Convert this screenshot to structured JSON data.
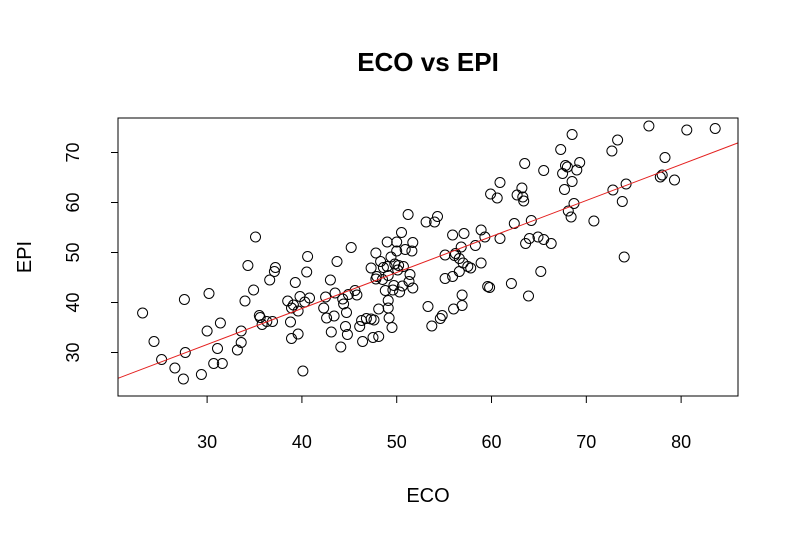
{
  "chart_data": {
    "type": "scatter",
    "title": "ECO vs EPI",
    "xlabel": "ECO",
    "ylabel": "EPI",
    "xlim": [
      20.6,
      86.0
    ],
    "ylim": [
      21.3,
      76.9
    ],
    "xticks": [
      "30",
      "40",
      "50",
      "60",
      "70",
      "80"
    ],
    "yticks": [
      "30",
      "40",
      "50",
      "60",
      "70"
    ],
    "grid": false,
    "legend": "none",
    "point_color": "#000000",
    "line_color": "#e4201f",
    "regression_line": {
      "intercept": 10.0,
      "slope": 0.72
    },
    "points": [
      [
        23.2,
        37.9
      ],
      [
        24.4,
        32.2
      ],
      [
        25.2,
        28.6
      ],
      [
        26.6,
        26.9
      ],
      [
        27.5,
        24.7
      ],
      [
        27.6,
        40.6
      ],
      [
        27.7,
        30.0
      ],
      [
        29.4,
        25.6
      ],
      [
        30.0,
        34.3
      ],
      [
        30.2,
        41.8
      ],
      [
        30.7,
        27.8
      ],
      [
        31.1,
        30.8
      ],
      [
        31.4,
        35.9
      ],
      [
        31.6,
        27.8
      ],
      [
        33.2,
        30.5
      ],
      [
        33.6,
        34.3
      ],
      [
        33.6,
        32.0
      ],
      [
        34.0,
        40.3
      ],
      [
        34.3,
        47.4
      ],
      [
        34.9,
        42.5
      ],
      [
        35.1,
        53.1
      ],
      [
        35.5,
        37.4
      ],
      [
        35.6,
        37.0
      ],
      [
        35.8,
        35.6
      ],
      [
        36.3,
        36.2
      ],
      [
        36.6,
        44.5
      ],
      [
        36.9,
        36.2
      ],
      [
        37.1,
        46.2
      ],
      [
        37.2,
        47.0
      ],
      [
        38.5,
        40.3
      ],
      [
        38.8,
        36.1
      ],
      [
        38.9,
        32.8
      ],
      [
        38.9,
        38.9
      ],
      [
        39.1,
        39.5
      ],
      [
        39.3,
        44.0
      ],
      [
        39.6,
        33.7
      ],
      [
        39.6,
        38.3
      ],
      [
        39.8,
        41.2
      ],
      [
        40.1,
        26.3
      ],
      [
        40.3,
        40.1
      ],
      [
        40.5,
        46.1
      ],
      [
        40.6,
        49.2
      ],
      [
        40.8,
        40.9
      ],
      [
        42.3,
        38.9
      ],
      [
        42.5,
        41.1
      ],
      [
        42.6,
        36.9
      ],
      [
        43.0,
        44.5
      ],
      [
        43.1,
        34.1
      ],
      [
        43.4,
        37.3
      ],
      [
        43.5,
        41.9
      ],
      [
        43.7,
        48.2
      ],
      [
        44.1,
        31.1
      ],
      [
        44.3,
        40.7
      ],
      [
        44.4,
        39.7
      ],
      [
        44.6,
        35.2
      ],
      [
        44.7,
        38.0
      ],
      [
        44.8,
        33.6
      ],
      [
        44.9,
        41.6
      ],
      [
        45.2,
        51.0
      ],
      [
        45.6,
        42.4
      ],
      [
        45.8,
        41.5
      ],
      [
        46.1,
        35.2
      ],
      [
        46.3,
        36.4
      ],
      [
        46.4,
        32.2
      ],
      [
        46.8,
        36.8
      ],
      [
        47.3,
        46.9
      ],
      [
        47.3,
        36.7
      ],
      [
        47.5,
        33.0
      ],
      [
        47.6,
        36.5
      ],
      [
        47.8,
        44.7
      ],
      [
        47.8,
        49.9
      ],
      [
        47.9,
        45.2
      ],
      [
        48.1,
        33.2
      ],
      [
        48.1,
        38.7
      ],
      [
        48.3,
        48.2
      ],
      [
        48.5,
        44.6
      ],
      [
        48.6,
        47.0
      ],
      [
        48.8,
        42.4
      ],
      [
        49.0,
        47.2
      ],
      [
        49.0,
        52.1
      ],
      [
        49.1,
        38.9
      ],
      [
        49.1,
        45.4
      ],
      [
        49.1,
        40.4
      ],
      [
        49.2,
        36.9
      ],
      [
        49.4,
        49.1
      ],
      [
        49.5,
        35.0
      ],
      [
        49.6,
        42.5
      ],
      [
        49.7,
        43.4
      ],
      [
        49.8,
        47.7
      ],
      [
        50.0,
        52.1
      ],
      [
        50.0,
        50.3
      ],
      [
        50.1,
        46.5
      ],
      [
        50.2,
        47.4
      ],
      [
        50.3,
        42.1
      ],
      [
        50.5,
        54.0
      ],
      [
        50.6,
        43.3
      ],
      [
        50.7,
        47.2
      ],
      [
        50.9,
        50.6
      ],
      [
        51.2,
        57.6
      ],
      [
        51.3,
        44.2
      ],
      [
        51.4,
        45.6
      ],
      [
        51.6,
        50.3
      ],
      [
        51.7,
        42.9
      ],
      [
        51.7,
        52.0
      ],
      [
        53.1,
        56.1
      ],
      [
        53.3,
        39.2
      ],
      [
        53.7,
        35.3
      ],
      [
        54.0,
        56.1
      ],
      [
        54.3,
        57.2
      ],
      [
        54.6,
        36.8
      ],
      [
        54.8,
        37.4
      ],
      [
        55.1,
        44.8
      ],
      [
        55.1,
        49.5
      ],
      [
        55.9,
        45.2
      ],
      [
        55.9,
        53.5
      ],
      [
        56.0,
        38.7
      ],
      [
        56.1,
        49.4
      ],
      [
        56.2,
        49.8
      ],
      [
        56.6,
        48.8
      ],
      [
        56.6,
        46.2
      ],
      [
        56.8,
        51.1
      ],
      [
        56.9,
        39.4
      ],
      [
        56.9,
        41.5
      ],
      [
        57.0,
        47.9
      ],
      [
        57.1,
        53.8
      ],
      [
        57.5,
        47.2
      ],
      [
        57.8,
        46.9
      ],
      [
        58.3,
        51.4
      ],
      [
        58.9,
        47.9
      ],
      [
        58.9,
        54.5
      ],
      [
        59.3,
        53.1
      ],
      [
        59.6,
        43.2
      ],
      [
        59.8,
        43.0
      ],
      [
        59.9,
        61.7
      ],
      [
        60.6,
        60.9
      ],
      [
        60.9,
        64.0
      ],
      [
        60.9,
        52.8
      ],
      [
        62.1,
        43.8
      ],
      [
        62.4,
        55.8
      ],
      [
        62.7,
        61.5
      ],
      [
        63.2,
        62.9
      ],
      [
        63.3,
        61.1
      ],
      [
        63.4,
        60.3
      ],
      [
        63.5,
        67.8
      ],
      [
        63.6,
        51.8
      ],
      [
        63.9,
        41.3
      ],
      [
        64.0,
        52.8
      ],
      [
        64.2,
        56.4
      ],
      [
        64.9,
        53.1
      ],
      [
        65.2,
        46.2
      ],
      [
        65.5,
        66.4
      ],
      [
        65.5,
        52.6
      ],
      [
        66.3,
        51.8
      ],
      [
        67.3,
        70.6
      ],
      [
        67.5,
        65.8
      ],
      [
        67.7,
        62.6
      ],
      [
        67.8,
        67.4
      ],
      [
        68.0,
        67.1
      ],
      [
        68.1,
        58.3
      ],
      [
        68.4,
        57.1
      ],
      [
        68.5,
        73.6
      ],
      [
        68.5,
        64.2
      ],
      [
        68.7,
        59.8
      ],
      [
        69.0,
        66.5
      ],
      [
        69.3,
        68.0
      ],
      [
        70.8,
        56.3
      ],
      [
        72.7,
        70.3
      ],
      [
        72.8,
        62.5
      ],
      [
        73.3,
        72.5
      ],
      [
        73.8,
        60.2
      ],
      [
        74.0,
        49.1
      ],
      [
        74.2,
        63.7
      ],
      [
        76.6,
        75.3
      ],
      [
        77.8,
        65.1
      ],
      [
        78.0,
        65.5
      ],
      [
        78.3,
        69.0
      ],
      [
        79.3,
        64.5
      ],
      [
        80.6,
        74.5
      ],
      [
        83.6,
        74.8
      ]
    ]
  }
}
